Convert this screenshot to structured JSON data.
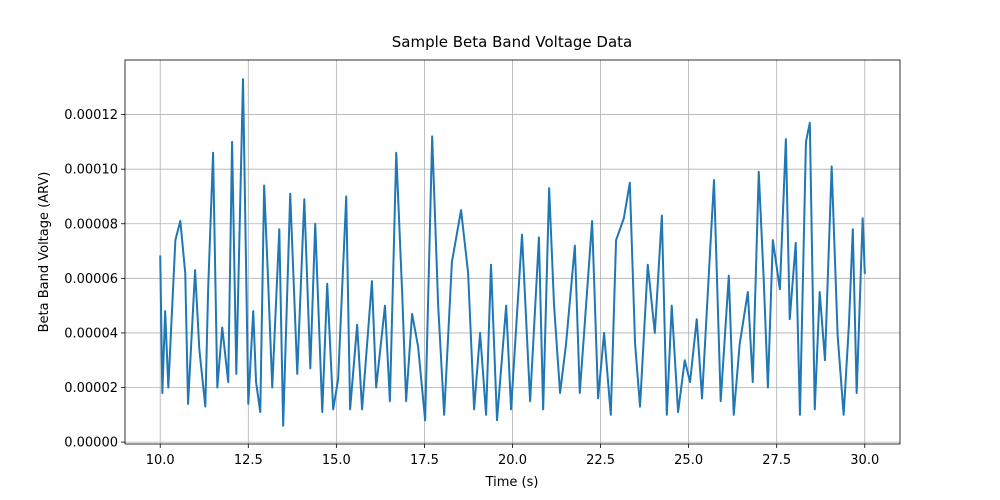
{
  "chart_data": {
    "type": "line",
    "title": "Sample Beta Band Voltage Data",
    "x_label": "Time (s)",
    "y_label": "Beta Band Voltage (ARV)",
    "grid": true,
    "xlim": [
      9.0,
      31.0
    ],
    "ylim": [
      -7e-07,
      0.00014
    ],
    "xticks": [
      {
        "value": 10,
        "label": "10.0"
      },
      12.5,
      {
        "value": 15,
        "label": "15.0"
      },
      17.5,
      {
        "value": 20,
        "label": "20.0"
      },
      22.5,
      {
        "value": 25,
        "label": "25.0"
      },
      27.5,
      {
        "value": 30,
        "label": "30.0"
      }
    ],
    "yticks": [
      {
        "value": 0,
        "label": "0.00000"
      },
      {
        "value": 2e-05,
        "label": "0.00002"
      },
      {
        "value": 4e-05,
        "label": "0.00004"
      },
      {
        "value": 6e-05,
        "label": "0.00006"
      },
      {
        "value": 8e-05,
        "label": "0.00008"
      },
      {
        "value": 0.0001,
        "label": "0.00010"
      },
      {
        "value": 0.00012,
        "label": "0.00012"
      }
    ],
    "x": [
      10.0,
      10.06,
      10.14,
      10.23,
      10.43,
      10.57,
      10.71,
      10.79,
      10.99,
      11.11,
      11.28,
      11.36,
      11.5,
      11.62,
      11.76,
      11.93,
      12.04,
      12.16,
      12.35,
      12.5,
      12.64,
      12.72,
      12.84,
      12.95,
      13.06,
      13.18,
      13.38,
      13.49,
      13.69,
      13.89,
      14.09,
      14.26,
      14.4,
      14.6,
      14.74,
      14.91,
      15.05,
      15.28,
      15.39,
      15.59,
      15.73,
      16.01,
      16.13,
      16.38,
      16.52,
      16.7,
      16.87,
      16.98,
      17.15,
      17.32,
      17.52,
      17.72,
      17.89,
      18.06,
      18.28,
      18.54,
      18.74,
      18.91,
      19.08,
      19.25,
      19.39,
      19.56,
      19.82,
      19.96,
      20.07,
      20.27,
      20.5,
      20.75,
      20.87,
      21.04,
      21.18,
      21.35,
      21.52,
      21.77,
      21.91,
      22.26,
      22.43,
      22.6,
      22.79,
      22.94,
      23.16,
      23.33,
      23.48,
      23.62,
      23.84,
      24.04,
      24.24,
      24.38,
      24.52,
      24.7,
      24.89,
      25.04,
      25.23,
      25.38,
      25.55,
      25.72,
      25.91,
      26.14,
      26.28,
      26.45,
      26.68,
      26.82,
      26.99,
      27.13,
      27.25,
      27.39,
      27.59,
      27.76,
      27.87,
      28.04,
      28.16,
      28.33,
      28.44,
      28.58,
      28.72,
      28.87,
      29.06,
      29.23,
      29.4,
      29.55,
      29.66,
      29.77,
      29.94,
      30.0
    ],
    "series": [
      {
        "color": "#1f77b4",
        "values": [
          6.8e-05,
          1.8e-05,
          4.8e-05,
          2e-05,
          7.4e-05,
          8.1e-05,
          6.2e-05,
          1.4e-05,
          6.3e-05,
          3.4e-05,
          1.3e-05,
          5.6e-05,
          0.000106,
          2e-05,
          4.2e-05,
          2.2e-05,
          0.00011,
          2.5e-05,
          0.000133,
          1.4e-05,
          4.8e-05,
          2.2e-05,
          1.1e-05,
          9.4e-05,
          6e-05,
          2e-05,
          7.8e-05,
          6e-06,
          9.1e-05,
          2.5e-05,
          8.9e-05,
          2.7e-05,
          8e-05,
          1.1e-05,
          5.8e-05,
          1.2e-05,
          2.3e-05,
          9e-05,
          1.2e-05,
          4.3e-05,
          1.2e-05,
          5.9e-05,
          2e-05,
          5e-05,
          1.5e-05,
          0.000106,
          5.4e-05,
          1.5e-05,
          4.7e-05,
          3.5e-05,
          8e-06,
          0.000112,
          5e-05,
          1e-05,
          6.6e-05,
          8.5e-05,
          6.2e-05,
          1.2e-05,
          4e-05,
          1e-05,
          6.5e-05,
          8e-06,
          5e-05,
          1.2e-05,
          3.5e-05,
          7.6e-05,
          1.5e-05,
          7.5e-05,
          1.2e-05,
          9.3e-05,
          5e-05,
          1.8e-05,
          3.6e-05,
          7.2e-05,
          1.8e-05,
          8.1e-05,
          1.6e-05,
          4e-05,
          1e-05,
          7.4e-05,
          8.2e-05,
          9.5e-05,
          3.6e-05,
          1.3e-05,
          6.5e-05,
          4e-05,
          8.3e-05,
          1e-05,
          5e-05,
          1.1e-05,
          3e-05,
          2.2e-05,
          4.5e-05,
          1.6e-05,
          5.6e-05,
          9.6e-05,
          1.5e-05,
          6.1e-05,
          1e-05,
          3.6e-05,
          5.5e-05,
          2.2e-05,
          9.9e-05,
          6e-05,
          2e-05,
          7.4e-05,
          5.6e-05,
          0.000111,
          4.5e-05,
          7.3e-05,
          1e-05,
          0.00011,
          0.000117,
          1.2e-05,
          5.5e-05,
          3e-05,
          0.000101,
          3.9e-05,
          1e-05,
          4.3e-05,
          7.8e-05,
          1.8e-05,
          8.2e-05,
          6.2e-05
        ]
      }
    ]
  }
}
